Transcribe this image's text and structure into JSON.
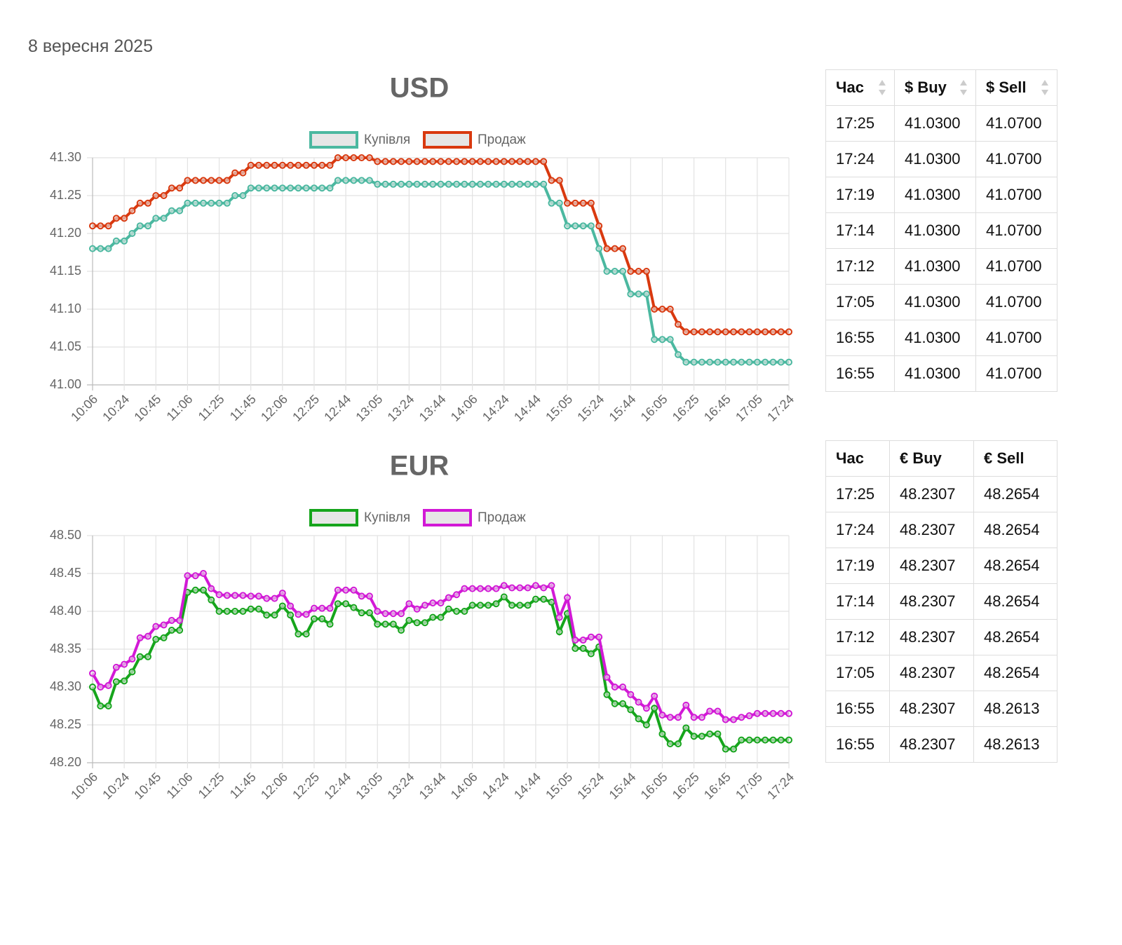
{
  "date": "8 вересня 2025",
  "chart_data": [
    {
      "type": "line",
      "title": "USD",
      "categories": [
        "10:06",
        null,
        null,
        null,
        "10:24",
        null,
        null,
        null,
        "10:45",
        null,
        null,
        null,
        "11:06",
        null,
        null,
        null,
        "11:25",
        null,
        null,
        null,
        "11:45",
        null,
        null,
        null,
        "12:06",
        null,
        null,
        null,
        "12:25",
        null,
        null,
        null,
        "12:44",
        null,
        null,
        null,
        "13:05",
        null,
        null,
        null,
        "13:24",
        null,
        null,
        null,
        "13:44",
        null,
        null,
        null,
        "14:06",
        null,
        null,
        null,
        "14:24",
        null,
        null,
        null,
        "14:44",
        null,
        null,
        null,
        "15:05",
        null,
        null,
        null,
        "15:24",
        null,
        null,
        null,
        "15:44",
        null,
        null,
        null,
        "16:05",
        null,
        null,
        null,
        "16:25",
        null,
        null,
        null,
        "16:45",
        null,
        null,
        null,
        "17:05",
        null,
        null,
        null,
        "17:24"
      ],
      "series": [
        {
          "name": "Купівля",
          "color": "#4bb8a0",
          "values": [
            41.18,
            41.18,
            41.18,
            41.19,
            41.19,
            41.2,
            41.21,
            41.21,
            41.22,
            41.22,
            41.23,
            41.23,
            41.24,
            41.24,
            41.24,
            41.24,
            41.24,
            41.24,
            41.25,
            41.25,
            41.26,
            41.26,
            41.26,
            41.26,
            41.26,
            41.26,
            41.26,
            41.26,
            41.26,
            41.26,
            41.26,
            41.27,
            41.27,
            41.27,
            41.27,
            41.27,
            41.265,
            41.265,
            41.265,
            41.265,
            41.265,
            41.265,
            41.265,
            41.265,
            41.265,
            41.265,
            41.265,
            41.265,
            41.265,
            41.265,
            41.265,
            41.265,
            41.265,
            41.265,
            41.265,
            41.265,
            41.265,
            41.265,
            41.24,
            41.24,
            41.21,
            41.21,
            41.21,
            41.21,
            41.18,
            41.15,
            41.15,
            41.15,
            41.12,
            41.12,
            41.12,
            41.06,
            41.06,
            41.06,
            41.04,
            41.03,
            41.03,
            41.03,
            41.03,
            41.03,
            41.03,
            41.03,
            41.03,
            41.03,
            41.03,
            41.03,
            41.03,
            41.03,
            41.03
          ]
        },
        {
          "name": "Продаж",
          "color": "#d9390f",
          "values": [
            41.21,
            41.21,
            41.21,
            41.22,
            41.22,
            41.23,
            41.24,
            41.24,
            41.25,
            41.25,
            41.26,
            41.26,
            41.27,
            41.27,
            41.27,
            41.27,
            41.27,
            41.27,
            41.28,
            41.28,
            41.29,
            41.29,
            41.29,
            41.29,
            41.29,
            41.29,
            41.29,
            41.29,
            41.29,
            41.29,
            41.29,
            41.3,
            41.3,
            41.3,
            41.3,
            41.3,
            41.295,
            41.295,
            41.295,
            41.295,
            41.295,
            41.295,
            41.295,
            41.295,
            41.295,
            41.295,
            41.295,
            41.295,
            41.295,
            41.295,
            41.295,
            41.295,
            41.295,
            41.295,
            41.295,
            41.295,
            41.295,
            41.295,
            41.27,
            41.27,
            41.24,
            41.24,
            41.24,
            41.24,
            41.21,
            41.18,
            41.18,
            41.18,
            41.15,
            41.15,
            41.15,
            41.1,
            41.1,
            41.1,
            41.08,
            41.07,
            41.07,
            41.07,
            41.07,
            41.07,
            41.07,
            41.07,
            41.07,
            41.07,
            41.07,
            41.07,
            41.07,
            41.07,
            41.07
          ]
        }
      ],
      "ylim": [
        41,
        41.3
      ],
      "yticks": [
        {
          "value": 41,
          "label": "41.00"
        },
        41.05,
        {
          "value": 41.1,
          "label": "41.10"
        },
        41.15,
        {
          "value": 41.2,
          "label": "41.20"
        },
        41.25,
        {
          "value": 41.3,
          "label": "41.30"
        }
      ],
      "grid": true
    },
    {
      "type": "line",
      "title": "EUR",
      "categories": [
        "10:06",
        null,
        null,
        null,
        "10:24",
        null,
        null,
        null,
        "10:45",
        null,
        null,
        null,
        "11:06",
        null,
        null,
        null,
        "11:25",
        null,
        null,
        null,
        "11:45",
        null,
        null,
        null,
        "12:06",
        null,
        null,
        null,
        "12:25",
        null,
        null,
        null,
        "12:44",
        null,
        null,
        null,
        "13:05",
        null,
        null,
        null,
        "13:24",
        null,
        null,
        null,
        "13:44",
        null,
        null,
        null,
        "14:06",
        null,
        null,
        null,
        "14:24",
        null,
        null,
        null,
        "14:44",
        null,
        null,
        null,
        "15:05",
        null,
        null,
        null,
        "15:24",
        null,
        null,
        null,
        "15:44",
        null,
        null,
        null,
        "16:05",
        null,
        null,
        null,
        "16:25",
        null,
        null,
        null,
        "16:45",
        null,
        null,
        null,
        "17:05",
        null,
        null,
        null,
        "17:24"
      ],
      "series": [
        {
          "name": "Купівля",
          "color": "#16a51c",
          "values": [
            48.3,
            48.275,
            48.275,
            48.307,
            48.308,
            48.32,
            48.34,
            48.34,
            48.363,
            48.365,
            48.375,
            48.375,
            48.425,
            48.428,
            48.428,
            48.415,
            48.4,
            48.4,
            48.4,
            48.4,
            48.403,
            48.403,
            48.395,
            48.395,
            48.407,
            48.395,
            48.37,
            48.37,
            48.39,
            48.39,
            48.383,
            48.41,
            48.41,
            48.405,
            48.398,
            48.398,
            48.383,
            48.383,
            48.383,
            48.375,
            48.388,
            48.385,
            48.385,
            48.392,
            48.392,
            48.403,
            48.4,
            48.4,
            48.408,
            48.408,
            48.408,
            48.41,
            48.419,
            48.408,
            48.408,
            48.408,
            48.416,
            48.416,
            48.412,
            48.373,
            48.397,
            48.351,
            48.351,
            48.344,
            48.353,
            48.29,
            48.278,
            48.278,
            48.27,
            48.258,
            48.25,
            48.272,
            48.238,
            48.225,
            48.225,
            48.246,
            48.235,
            48.235,
            48.238,
            48.238,
            48.218,
            48.218,
            48.23,
            48.23,
            48.23,
            48.23,
            48.23,
            48.23,
            48.23
          ]
        },
        {
          "name": "Продаж",
          "color": "#d219d6",
          "values": [
            48.318,
            48.3,
            48.302,
            48.326,
            48.33,
            48.337,
            48.365,
            48.367,
            48.38,
            48.382,
            48.388,
            48.388,
            48.447,
            48.447,
            48.45,
            48.43,
            48.422,
            48.421,
            48.421,
            48.421,
            48.42,
            48.42,
            48.417,
            48.417,
            48.424,
            48.407,
            48.396,
            48.396,
            48.404,
            48.404,
            48.404,
            48.428,
            48.428,
            48.428,
            48.42,
            48.42,
            48.4,
            48.397,
            48.397,
            48.397,
            48.41,
            48.403,
            48.408,
            48.411,
            48.411,
            48.418,
            48.422,
            48.43,
            48.43,
            48.43,
            48.43,
            48.43,
            48.434,
            48.431,
            48.431,
            48.431,
            48.434,
            48.431,
            48.434,
            48.392,
            48.418,
            48.362,
            48.362,
            48.366,
            48.366,
            48.313,
            48.3,
            48.3,
            48.29,
            48.28,
            48.272,
            48.288,
            48.263,
            48.26,
            48.26,
            48.276,
            48.26,
            48.26,
            48.268,
            48.268,
            48.257,
            48.257,
            48.26,
            48.262,
            48.265,
            48.265,
            48.265,
            48.265,
            48.265
          ]
        }
      ],
      "ylim": [
        48.2,
        48.5
      ],
      "yticks": [
        {
          "value": 48.2,
          "label": "48.20"
        },
        48.25,
        {
          "value": 48.3,
          "label": "48.30"
        },
        48.35,
        {
          "value": 48.4,
          "label": "48.40"
        },
        48.45,
        {
          "value": 48.5,
          "label": "48.50"
        }
      ],
      "grid": true
    }
  ],
  "tables": [
    {
      "sortable": true,
      "columns": [
        "Час",
        "$ Buy",
        "$ Sell"
      ],
      "rows": [
        [
          "17:25",
          "41.0300",
          "41.0700"
        ],
        [
          "17:24",
          "41.0300",
          "41.0700"
        ],
        [
          "17:19",
          "41.0300",
          "41.0700"
        ],
        [
          "17:14",
          "41.0300",
          "41.0700"
        ],
        [
          "17:12",
          "41.0300",
          "41.0700"
        ],
        [
          "17:05",
          "41.0300",
          "41.0700"
        ],
        [
          "16:55",
          "41.0300",
          "41.0700"
        ],
        [
          "16:55",
          "41.0300",
          "41.0700"
        ]
      ]
    },
    {
      "sortable": false,
      "columns": [
        "Час",
        "€ Buy",
        "€ Sell"
      ],
      "rows": [
        [
          "17:25",
          "48.2307",
          "48.2654"
        ],
        [
          "17:24",
          "48.2307",
          "48.2654"
        ],
        [
          "17:19",
          "48.2307",
          "48.2654"
        ],
        [
          "17:14",
          "48.2307",
          "48.2654"
        ],
        [
          "17:12",
          "48.2307",
          "48.2654"
        ],
        [
          "17:05",
          "48.2307",
          "48.2654"
        ],
        [
          "16:55",
          "48.2307",
          "48.2613"
        ],
        [
          "16:55",
          "48.2307",
          "48.2613"
        ]
      ]
    }
  ]
}
